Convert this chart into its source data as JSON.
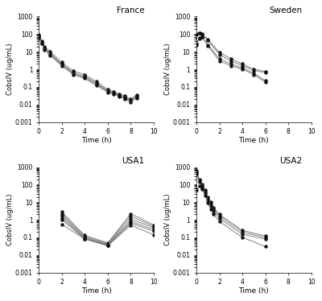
{
  "france": {
    "title": "France",
    "xlabel": "Time (h)",
    "ylabel": "CobsIV (ug/mL)",
    "xlim": [
      0,
      10
    ],
    "ylim": [
      0.001,
      1000
    ],
    "xticks": [
      0,
      2,
      4,
      6,
      8,
      10
    ],
    "curves": [
      {
        "x": [
          0,
          0.25,
          0.5,
          1,
          2,
          3,
          4,
          5,
          6,
          6.5,
          7,
          7.5,
          8,
          8.5
        ],
        "y": [
          90,
          40,
          20,
          10,
          2.5,
          0.8,
          0.5,
          0.2,
          0.07,
          0.055,
          0.04,
          0.03,
          0.02,
          0.035
        ]
      },
      {
        "x": [
          0,
          0.25,
          0.5,
          1,
          2,
          3,
          4,
          5,
          6,
          6.5,
          7,
          7.5,
          8,
          8.5
        ],
        "y": [
          80,
          35,
          17,
          8,
          2.0,
          0.65,
          0.4,
          0.17,
          0.06,
          0.048,
          0.035,
          0.025,
          0.018,
          0.03
        ]
      },
      {
        "x": [
          0,
          0.25,
          0.5,
          1,
          2,
          3,
          4,
          5,
          6,
          6.5,
          7,
          7.5,
          8,
          8.5
        ],
        "y": [
          70,
          30,
          15,
          7,
          1.8,
          0.55,
          0.35,
          0.14,
          0.055,
          0.043,
          0.031,
          0.022,
          0.016,
          0.026
        ]
      },
      {
        "x": [
          0,
          0.25,
          0.5,
          1,
          2,
          3,
          4,
          5,
          6,
          6.5,
          7,
          7.5,
          8,
          8.5
        ],
        "y": [
          60,
          28,
          13,
          6,
          1.6,
          0.5,
          0.3,
          0.12,
          0.05,
          0.038,
          0.028,
          0.02,
          0.014,
          0.022
        ]
      }
    ]
  },
  "sweden": {
    "title": "Sweden",
    "xlabel": "Time (h)",
    "ylabel": "CobsIV (ug/mL)",
    "xlim": [
      0,
      10
    ],
    "ylim": [
      0.001,
      1000
    ],
    "xticks": [
      0,
      2,
      4,
      6,
      8,
      10
    ],
    "curves": [
      {
        "x": [
          0,
          0.25,
          0.5,
          1,
          2,
          3,
          4,
          5,
          6
        ],
        "y": [
          100,
          120,
          100,
          50,
          9,
          4,
          2.0,
          1.0,
          0.75
        ]
      },
      {
        "x": [
          0,
          0.25,
          0.5,
          1,
          2,
          3,
          4,
          5,
          6
        ],
        "y": [
          90,
          110,
          90,
          45,
          7,
          3,
          1.6,
          0.85,
          0.65
        ]
      },
      {
        "x": [
          0,
          0.25,
          0.5,
          1,
          2,
          3,
          4,
          5,
          6
        ],
        "y": [
          30,
          60,
          70,
          25,
          4,
          2.0,
          1.2,
          0.6,
          0.22
        ]
      },
      {
        "x": [
          0,
          0.25,
          0.5,
          1,
          2,
          3,
          4,
          5,
          6
        ],
        "y": [
          25,
          55,
          65,
          22,
          3,
          1.6,
          1.0,
          0.5,
          0.18
        ]
      }
    ]
  },
  "usa1": {
    "title": "USA1",
    "xlabel": "Time (h)",
    "ylabel": "CobsIV (ug/mL)",
    "xlim": [
      0,
      10
    ],
    "ylim": [
      0.001,
      1000
    ],
    "xticks": [
      0,
      2,
      4,
      6,
      8,
      10
    ],
    "curves": [
      {
        "x": [
          2,
          4,
          6,
          8,
          10
        ],
        "y": [
          2.8,
          0.13,
          0.048,
          2.2,
          0.5
        ]
      },
      {
        "x": [
          2,
          4,
          6,
          8,
          10
        ],
        "y": [
          2.2,
          0.11,
          0.044,
          1.6,
          0.42
        ]
      },
      {
        "x": [
          2,
          4,
          6,
          8,
          10
        ],
        "y": [
          1.7,
          0.095,
          0.04,
          1.1,
          0.35
        ]
      },
      {
        "x": [
          2,
          4,
          6,
          8,
          10
        ],
        "y": [
          1.3,
          0.088,
          0.037,
          0.8,
          0.28
        ]
      },
      {
        "x": [
          2,
          4,
          6,
          8,
          10
        ],
        "y": [
          1.0,
          0.083,
          0.035,
          0.65,
          0.22
        ]
      },
      {
        "x": [
          2,
          4,
          6,
          8,
          10
        ],
        "y": [
          0.55,
          0.08,
          0.033,
          0.5,
          0.14
        ]
      }
    ]
  },
  "usa2": {
    "title": "USA2",
    "xlabel": "Time (h)",
    "ylabel": "CobsIV (ug/mL)",
    "xlim": [
      0,
      10
    ],
    "ylim": [
      0.001,
      1000
    ],
    "xticks": [
      0,
      2,
      4,
      6,
      8,
      10
    ],
    "curves": [
      {
        "x": [
          0,
          0.25,
          0.5,
          0.75,
          1,
          1.25,
          1.5,
          2,
          4,
          6
        ],
        "y": [
          600,
          200,
          100,
          50,
          20,
          10,
          5,
          2.0,
          0.25,
          0.12
        ]
      },
      {
        "x": [
          0,
          0.25,
          0.5,
          0.75,
          1,
          1.25,
          1.5,
          2,
          4,
          6
        ],
        "y": [
          500,
          180,
          80,
          40,
          15,
          8,
          4,
          1.6,
          0.2,
          0.1
        ]
      },
      {
        "x": [
          0,
          0.25,
          0.5,
          0.75,
          1,
          1.25,
          1.5,
          2,
          4,
          6
        ],
        "y": [
          400,
          150,
          65,
          32,
          12,
          6,
          3,
          1.2,
          0.15,
          0.08
        ]
      },
      {
        "x": [
          0,
          0.25,
          0.5,
          0.75,
          1,
          1.25,
          1.5,
          2,
          4,
          6
        ],
        "y": [
          50,
          80,
          55,
          25,
          9,
          4,
          2,
          0.8,
          0.1,
          0.03
        ]
      }
    ]
  },
  "line_color": "#777777",
  "marker_color": "#111111",
  "bg_color": "#ffffff"
}
